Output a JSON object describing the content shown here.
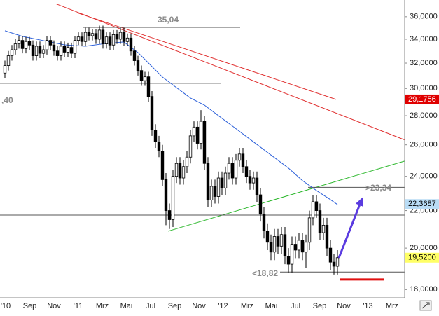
{
  "chart_data": {
    "type": "candlestick",
    "ylog": true,
    "ylim": [
      17.63,
      37.56
    ],
    "yticks": [
      {
        "value": 18,
        "label": "18,0000"
      },
      {
        "value": 20,
        "label": "20,0000"
      },
      {
        "value": 22,
        "label": "22,0000"
      },
      {
        "value": 24,
        "label": "24,0000"
      },
      {
        "value": 26,
        "label": "26,0000"
      },
      {
        "value": 28,
        "label": "28,0000"
      },
      {
        "value": 30,
        "label": "30,0000"
      },
      {
        "value": 32,
        "label": "32,0000"
      },
      {
        "value": 34,
        "label": "34,0000"
      },
      {
        "value": 36,
        "label": "36,0000"
      }
    ],
    "xlim": [
      -1.4,
      114.2
    ],
    "x_labels": [
      "'10",
      "Sep",
      "Nov",
      "'11",
      "Mrz",
      "Mai",
      "Jul",
      "Sep",
      "Nov",
      "'12",
      "Mrz",
      "Mai",
      "Jul",
      "Sep",
      "Nov",
      "'13",
      "Mrz"
    ],
    "candles": {
      "up_color": "#ffffff",
      "down_color": "#000000",
      "open": [
        31.2,
        31.8,
        32.6,
        33.1,
        33.6,
        33.9,
        33.2,
        33.8,
        33.5,
        32.6,
        33.4,
        32.8,
        33.1,
        33.9,
        33.5,
        33.0,
        32.6,
        33.4,
        32.9,
        33.3,
        32.8,
        33.9,
        34.2,
        33.8,
        34.6,
        34.3,
        34.5,
        34.0,
        34.8,
        33.6,
        34.2,
        33.5,
        34.4,
        34.0,
        34.6,
        33.8,
        34.1,
        33.0,
        32.2,
        31.4,
        30.6,
        30.9,
        29.4,
        27.0,
        26.2,
        25.6,
        23.8,
        22.0,
        21.5,
        24.0,
        24.8,
        23.9,
        24.6,
        25.2,
        26.6,
        27.2,
        26.1,
        27.6,
        24.8,
        22.6,
        23.4,
        22.8,
        23.9,
        23.3,
        24.2,
        24.8,
        23.9,
        25.0,
        25.4,
        24.6,
        24.0,
        23.6,
        23.9,
        22.9,
        21.8,
        20.9,
        20.3,
        19.8,
        20.6,
        20.1,
        20.7,
        19.6,
        19.2,
        20.2,
        19.9,
        20.4,
        19.8,
        20.3,
        21.6,
        22.5,
        22.0,
        20.8,
        21.2,
        20.0,
        19.3,
        19.1
      ],
      "high": [
        32.2,
        33.0,
        33.5,
        34.0,
        34.3,
        34.3,
        34.2,
        34.2,
        33.9,
        33.8,
        33.8,
        33.5,
        34.3,
        34.3,
        33.9,
        33.4,
        33.8,
        33.8,
        33.7,
        33.7,
        34.3,
        34.6,
        34.6,
        35.0,
        35.0,
        34.9,
        34.9,
        35.2,
        35.2,
        34.6,
        34.6,
        34.8,
        34.8,
        35.0,
        35.0,
        34.5,
        34.5,
        33.4,
        32.6,
        31.8,
        31.3,
        31.3,
        29.8,
        27.4,
        26.6,
        26.0,
        24.2,
        22.4,
        24.4,
        25.2,
        25.2,
        25.0,
        25.6,
        27.0,
        27.6,
        27.6,
        28.4,
        28.0,
        25.2,
        23.8,
        23.8,
        24.3,
        24.3,
        24.6,
        25.2,
        25.2,
        25.4,
        25.8,
        25.8,
        25.0,
        24.4,
        24.3,
        24.3,
        23.3,
        22.2,
        21.3,
        20.7,
        21.0,
        21.0,
        21.1,
        21.1,
        20.0,
        20.6,
        20.6,
        20.8,
        20.8,
        20.7,
        22.0,
        22.9,
        22.9,
        22.4,
        21.6,
        21.6,
        20.4,
        19.7,
        19.9
      ],
      "low": [
        30.8,
        31.4,
        32.2,
        32.7,
        33.2,
        32.8,
        32.8,
        33.1,
        32.2,
        32.2,
        32.4,
        32.4,
        32.7,
        33.1,
        32.6,
        32.2,
        32.2,
        32.5,
        32.5,
        32.4,
        32.4,
        33.5,
        33.4,
        33.4,
        33.9,
        33.9,
        33.6,
        33.6,
        33.2,
        33.2,
        33.1,
        33.1,
        33.6,
        33.6,
        33.4,
        33.4,
        32.6,
        31.8,
        31.0,
        30.2,
        30.2,
        29.0,
        26.6,
        25.8,
        25.2,
        23.4,
        21.2,
        21.0,
        21.1,
        23.6,
        23.5,
        23.5,
        24.2,
        24.8,
        26.2,
        25.7,
        25.7,
        24.4,
        22.2,
        22.2,
        22.4,
        22.4,
        22.9,
        22.9,
        23.8,
        23.5,
        23.5,
        24.6,
        24.2,
        23.6,
        23.2,
        23.2,
        22.5,
        21.4,
        20.5,
        19.9,
        19.4,
        19.4,
        19.7,
        19.7,
        19.2,
        18.8,
        18.8,
        19.5,
        19.5,
        19.4,
        19.0,
        19.9,
        21.2,
        21.6,
        20.4,
        20.4,
        19.6,
        18.9,
        18.7,
        18.7
      ],
      "close": [
        31.8,
        32.6,
        33.1,
        33.6,
        33.9,
        33.2,
        33.8,
        33.5,
        32.6,
        33.4,
        32.8,
        33.1,
        33.9,
        33.5,
        33.0,
        32.6,
        33.4,
        32.9,
        33.3,
        32.8,
        33.9,
        34.2,
        33.8,
        34.6,
        34.3,
        34.5,
        34.0,
        34.8,
        33.6,
        34.2,
        33.5,
        34.4,
        34.0,
        34.6,
        33.8,
        34.1,
        33.0,
        32.2,
        31.4,
        30.6,
        30.9,
        29.4,
        27.0,
        26.2,
        25.6,
        23.8,
        22.0,
        21.5,
        24.0,
        24.8,
        23.9,
        24.6,
        25.2,
        26.6,
        27.2,
        26.1,
        27.6,
        24.8,
        22.6,
        23.4,
        22.8,
        23.9,
        23.3,
        24.2,
        24.8,
        23.9,
        25.0,
        25.4,
        24.6,
        24.0,
        23.6,
        23.9,
        22.9,
        21.8,
        20.9,
        20.3,
        19.8,
        20.6,
        20.1,
        20.7,
        19.6,
        19.2,
        20.2,
        19.9,
        20.4,
        19.8,
        20.3,
        21.6,
        22.5,
        22.0,
        20.8,
        21.2,
        20.0,
        19.3,
        19.1,
        19.52
      ]
    },
    "moving_average": {
      "color": "#2b5fd9",
      "x": [
        0,
        5,
        11,
        17,
        23,
        29,
        34,
        38,
        41,
        45,
        49,
        53,
        57,
        61,
        65,
        69,
        73,
        77,
        81,
        85,
        89,
        93,
        95
      ],
      "values": [
        34.74,
        34.25,
        33.88,
        33.52,
        33.4,
        33.64,
        33.76,
        32.87,
        32.01,
        30.88,
        30.07,
        29.28,
        28.76,
        28.0,
        27.27,
        26.55,
        25.85,
        25.17,
        24.51,
        23.74,
        23.15,
        22.62,
        22.34
      ]
    },
    "lines": [
      {
        "color": "#e03030",
        "width": 1,
        "x": [
          14.6,
          114.2
        ],
        "values": [
          37.2,
          26.33
        ]
      },
      {
        "color": "#e03030",
        "width": 1,
        "x": [
          20.6,
          94.6
        ],
        "values": [
          36.37,
          29.18
        ]
      },
      {
        "color": "#2db82d",
        "width": 1,
        "x": [
          46.6,
          114.2
        ],
        "values": [
          20.88,
          24.95
        ]
      },
      {
        "color": "#555555",
        "width": 1,
        "x": [
          22.2,
          67.2
        ],
        "values": [
          35.04,
          35.04
        ],
        "label": "35,04"
      },
      {
        "color": "#555555",
        "width": 1,
        "x": [
          -1.4,
          61.6
        ],
        "values": [
          30.4,
          30.4
        ],
        "label": ",40"
      },
      {
        "color": "#555555",
        "width": 1,
        "x": [
          -1.4,
          114.2
        ],
        "values": [
          21.75,
          21.75
        ]
      },
      {
        "color": "#555555",
        "width": 1,
        "x": [
          86.6,
          114.2
        ],
        "values": [
          23.34,
          23.34
        ],
        "label": ">23,34"
      },
      {
        "color": "#555555",
        "width": 1,
        "x": [
          78.6,
          114.2
        ],
        "values": [
          18.82,
          18.82
        ],
        "label": "<18,82"
      },
      {
        "color": "#e01010",
        "width": 3,
        "x": [
          95.8,
          108.2
        ],
        "values": [
          18.47,
          18.47
        ]
      }
    ],
    "arrow": {
      "color": "#5a3be0",
      "x": [
        95.4,
        102
      ],
      "values": [
        19.51,
        22.66
      ]
    },
    "price_labels": [
      {
        "value": 29.1756,
        "label": "29,1756",
        "color": "#e00000",
        "text_color": "#ffffff"
      },
      {
        "value": 22.3687,
        "label": "22,3687",
        "color": "#b9dcf5",
        "text_color": "#000000"
      },
      {
        "value": 19.52,
        "label": "19,5200",
        "color": "#ffff66",
        "text_color": "#000000"
      }
    ]
  }
}
